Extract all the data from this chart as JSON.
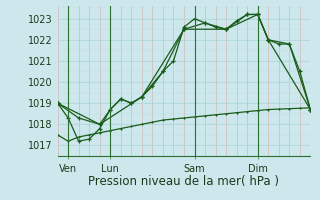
{
  "bg_color": "#cde8ec",
  "line_color": "#1a5c1a",
  "ylabel_ticks": [
    1017,
    1018,
    1019,
    1020,
    1021,
    1022,
    1023
  ],
  "xlim": [
    0,
    72
  ],
  "ylim": [
    1016.5,
    1023.6
  ],
  "xlabel": "Pression niveau de la mer( hPa )",
  "xlabel_fontsize": 8.5,
  "tick_fontsize": 7,
  "xtick_labels": [
    "Ven",
    "Lun",
    "Sam",
    "Dim"
  ],
  "xtick_positions": [
    3,
    15,
    39,
    57
  ],
  "vline_positions": [
    3,
    15,
    39,
    57
  ],
  "series1_x": [
    0,
    3,
    6,
    9,
    12,
    15,
    18,
    21,
    24,
    27,
    30,
    33,
    36,
    39,
    42,
    45,
    48,
    51,
    54,
    57,
    60,
    63,
    66,
    69,
    72
  ],
  "series1_y": [
    1019.0,
    1018.3,
    1017.2,
    1017.3,
    1017.8,
    1018.7,
    1019.2,
    1019.0,
    1019.3,
    1019.8,
    1020.5,
    1021.0,
    1022.6,
    1023.0,
    1022.8,
    1022.6,
    1022.5,
    1022.9,
    1023.2,
    1023.2,
    1022.0,
    1021.8,
    1021.8,
    1020.5,
    1018.7
  ],
  "series2_x": [
    0,
    6,
    12,
    15,
    18,
    21,
    24,
    30,
    36,
    42,
    48,
    54,
    57,
    60,
    66,
    72
  ],
  "series2_y": [
    1019.0,
    1018.3,
    1018.0,
    1018.7,
    1019.2,
    1019.0,
    1019.3,
    1020.5,
    1022.5,
    1022.8,
    1022.5,
    1023.2,
    1023.2,
    1022.0,
    1021.8,
    1018.7
  ],
  "series3_x": [
    0,
    12,
    24,
    36,
    48,
    57,
    60,
    72
  ],
  "series3_y": [
    1019.0,
    1018.0,
    1019.3,
    1022.5,
    1022.5,
    1023.2,
    1022.0,
    1018.7
  ],
  "series4_x": [
    0,
    3,
    6,
    9,
    12,
    15,
    18,
    21,
    24,
    27,
    30,
    33,
    36,
    39,
    42,
    45,
    48,
    51,
    54,
    57,
    60,
    63,
    66,
    69,
    72
  ],
  "series4_y": [
    1017.5,
    1017.2,
    1017.4,
    1017.5,
    1017.6,
    1017.7,
    1017.8,
    1017.9,
    1018.0,
    1018.1,
    1018.2,
    1018.25,
    1018.3,
    1018.35,
    1018.4,
    1018.45,
    1018.5,
    1018.55,
    1018.6,
    1018.65,
    1018.7,
    1018.72,
    1018.74,
    1018.76,
    1018.78
  ]
}
